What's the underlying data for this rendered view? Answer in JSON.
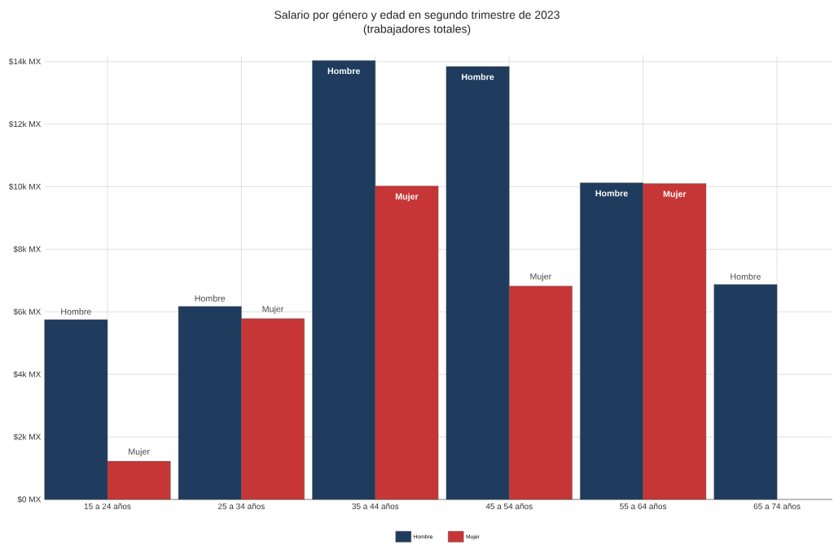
{
  "chart_data": {
    "type": "bar",
    "title": "Salario por género y edad en segundo trimestre de 2023",
    "subtitle": "(trabajadores totales)",
    "categories": [
      "15 a 24 años",
      "25 a 34 años",
      "35 a 44 años",
      "45 a 54 años",
      "55 a 64 años",
      "65 a 74 años"
    ],
    "series": [
      {
        "name": "Hombre",
        "color": "#1f3c5e",
        "values": [
          5750,
          6170,
          14030,
          13840,
          10120,
          6870
        ],
        "value_labels": [
          "Hombre",
          "Hombre",
          "Hombre",
          "Hombre",
          "Hombre",
          "Hombre"
        ]
      },
      {
        "name": "Mujer",
        "color": "#c73636",
        "values": [
          1220,
          5780,
          10020,
          6820,
          10100,
          null
        ],
        "value_labels": [
          "Mujer",
          "Mujer",
          "Mujer",
          "Mujer",
          "Mujer",
          null
        ]
      }
    ],
    "ylim": [
      0,
      14200
    ],
    "yticks": [
      {
        "value": 0,
        "label": "$0 MX"
      },
      {
        "value": 2000,
        "label": "$2k MX"
      },
      {
        "value": 4000,
        "label": "$4k MX"
      },
      {
        "value": 6000,
        "label": "$6k MX"
      },
      {
        "value": 8000,
        "label": "$8k MX"
      },
      {
        "value": 10000,
        "label": "$10k MX"
      },
      {
        "value": 12000,
        "label": "$12k MX"
      },
      {
        "value": 14000,
        "label": "$14k MX"
      }
    ],
    "grid": true,
    "legend": "bottom"
  }
}
